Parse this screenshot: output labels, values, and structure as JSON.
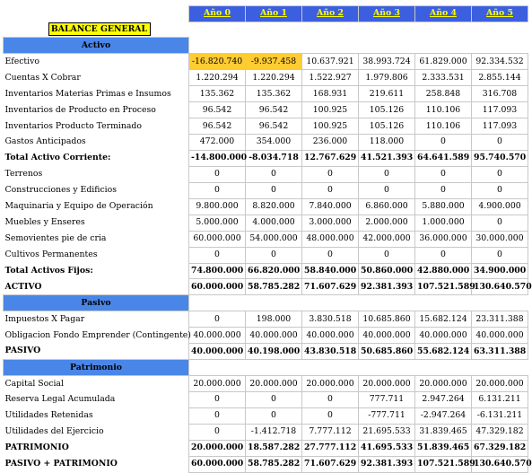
{
  "years": [
    "Año 0",
    "Año 1",
    "Año 2",
    "Año 3",
    "Año 4",
    "Año 5"
  ],
  "title": "BALANCE GENERAL",
  "sections": {
    "activo": "Activo",
    "pasivo": "Pasivo",
    "patrimonio": "Patrimonio"
  },
  "rows": [
    {
      "label": "Efectivo",
      "values": [
        "-16.820.740",
        "-9.937.458",
        "10.637.921",
        "38.993.724",
        "61.829.000",
        "92.334.532"
      ]
    },
    {
      "label": "Cuentas X Cobrar",
      "values": [
        "1.220.294",
        "1.220.294",
        "1.522.927",
        "1.979.806",
        "2.333.531",
        "2.855.144"
      ]
    },
    {
      "label": "Inventarios Materias Primas e Insumos",
      "values": [
        "135.362",
        "135.362",
        "168.931",
        "219.611",
        "258.848",
        "316.708"
      ]
    },
    {
      "label": "Inventarios de Producto en Proceso",
      "values": [
        "96.542",
        "96.542",
        "100.925",
        "105.126",
        "110.106",
        "117.093"
      ]
    },
    {
      "label": "Inventarios Producto Terminado",
      "values": [
        "96.542",
        "96.542",
        "100.925",
        "105.126",
        "110.106",
        "117.093"
      ]
    },
    {
      "label": "Gastos Anticipados",
      "values": [
        "472.000",
        "354.000",
        "236.000",
        "118.000",
        "0",
        "0"
      ]
    },
    {
      "label": "Total Activo Corriente:",
      "values": [
        "-14.800.000",
        "-8.034.718",
        "12.767.629",
        "41.521.393",
        "64.641.589",
        "95.740.570"
      ]
    },
    {
      "label": "Terrenos",
      "values": [
        "0",
        "0",
        "0",
        "0",
        "0",
        "0"
      ]
    },
    {
      "label": "Construcciones y Edificios",
      "values": [
        "0",
        "0",
        "0",
        "0",
        "0",
        "0"
      ]
    },
    {
      "label": "Maquinaria y Equipo de Operación",
      "values": [
        "9.800.000",
        "8.820.000",
        "7.840.000",
        "6.860.000",
        "5.880.000",
        "4.900.000"
      ]
    },
    {
      "label": "Muebles y Enseres",
      "values": [
        "5.000.000",
        "4.000.000",
        "3.000.000",
        "2.000.000",
        "1.000.000",
        "0"
      ]
    },
    {
      "label": "Semovientes pie de cria",
      "values": [
        "60.000.000",
        "54.000.000",
        "48.000.000",
        "42.000.000",
        "36.000.000",
        "30.000.000"
      ]
    },
    {
      "label": "Cultivos Permanentes",
      "values": [
        "0",
        "0",
        "0",
        "0",
        "0",
        "0"
      ]
    },
    {
      "label": "Total Activos Fijos:",
      "values": [
        "74.800.000",
        "66.820.000",
        "58.840.000",
        "50.860.000",
        "42.880.000",
        "34.900.000"
      ]
    },
    {
      "label": "ACTIVO",
      "values": [
        "60.000.000",
        "58.785.282",
        "71.607.629",
        "92.381.393",
        "107.521.589",
        "130.640.570"
      ]
    },
    {
      "label": "Impuestos X Pagar",
      "values": [
        "0",
        "198.000",
        "3.830.518",
        "10.685.860",
        "15.682.124",
        "23.311.388"
      ]
    },
    {
      "label": "Obligacion Fondo Emprender (Contingente)",
      "values": [
        "40.000.000",
        "40.000.000",
        "40.000.000",
        "40.000.000",
        "40.000.000",
        "40.000.000"
      ]
    },
    {
      "label": "PASIVO",
      "values": [
        "40.000.000",
        "40.198.000",
        "43.830.518",
        "50.685.860",
        "55.682.124",
        "63.311.388"
      ]
    },
    {
      "label": "Capital Social",
      "values": [
        "20.000.000",
        "20.000.000",
        "20.000.000",
        "20.000.000",
        "20.000.000",
        "20.000.000"
      ]
    },
    {
      "label": "Reserva Legal Acumulada",
      "values": [
        "0",
        "0",
        "0",
        "777.711",
        "2.947.264",
        "6.131.211"
      ]
    },
    {
      "label": "Utilidades Retenidas",
      "values": [
        "0",
        "0",
        "0",
        "-777.711",
        "-2.947.264",
        "-6.131.211"
      ]
    },
    {
      "label": "Utilidades del Ejercicio",
      "values": [
        "0",
        "-1.412.718",
        "7.777.112",
        "21.695.533",
        "31.839.465",
        "47.329.182"
      ]
    },
    {
      "label": "PATRIMONIO",
      "values": [
        "20.000.000",
        "18.587.282",
        "27.777.112",
        "41.695.533",
        "51.839.465",
        "67.329.182"
      ]
    },
    {
      "label": "PASIVO + PATRIMONIO",
      "values": [
        "60.000.000",
        "58.785.282",
        "71.607.629",
        "92.381.393",
        "107.521.589",
        "130.640.570"
      ]
    }
  ],
  "colors": {
    "header_bg": "#3c5fe0",
    "header_text": "#ffff00",
    "section_bg": "#4a86e8",
    "title_bg": "#ffff00",
    "negative_cash_bg": "#ffcc33"
  }
}
